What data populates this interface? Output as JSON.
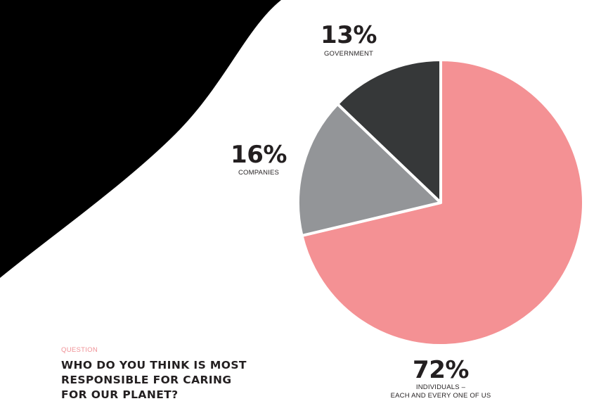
{
  "question": {
    "eyebrow": "QUESTION",
    "title": "WHO DO YOU THINK IS MOST\nRESPONSIBLE FOR CARING\nFOR OUR PLANET?"
  },
  "colors": {
    "individuals": "#f49194",
    "companies": "#939598",
    "government": "#363839",
    "background_shape": "#000000",
    "accent": "#f09196",
    "text": "#231f20"
  },
  "chart_data": {
    "type": "pie",
    "title": "",
    "start": "12-o'clock",
    "direction": "clockwise",
    "slices": [
      {
        "label": "INDIVIDUALS –",
        "sublabel": "EACH AND EVERY ONE OF US",
        "value": 72,
        "value_label": "72%",
        "color": "#f49194"
      },
      {
        "label": "COMPANIES",
        "value": 16,
        "value_label": "16%",
        "color": "#939598"
      },
      {
        "label": "GOVERNMENT",
        "value": 13,
        "value_label": "13%",
        "color": "#363839"
      }
    ]
  }
}
